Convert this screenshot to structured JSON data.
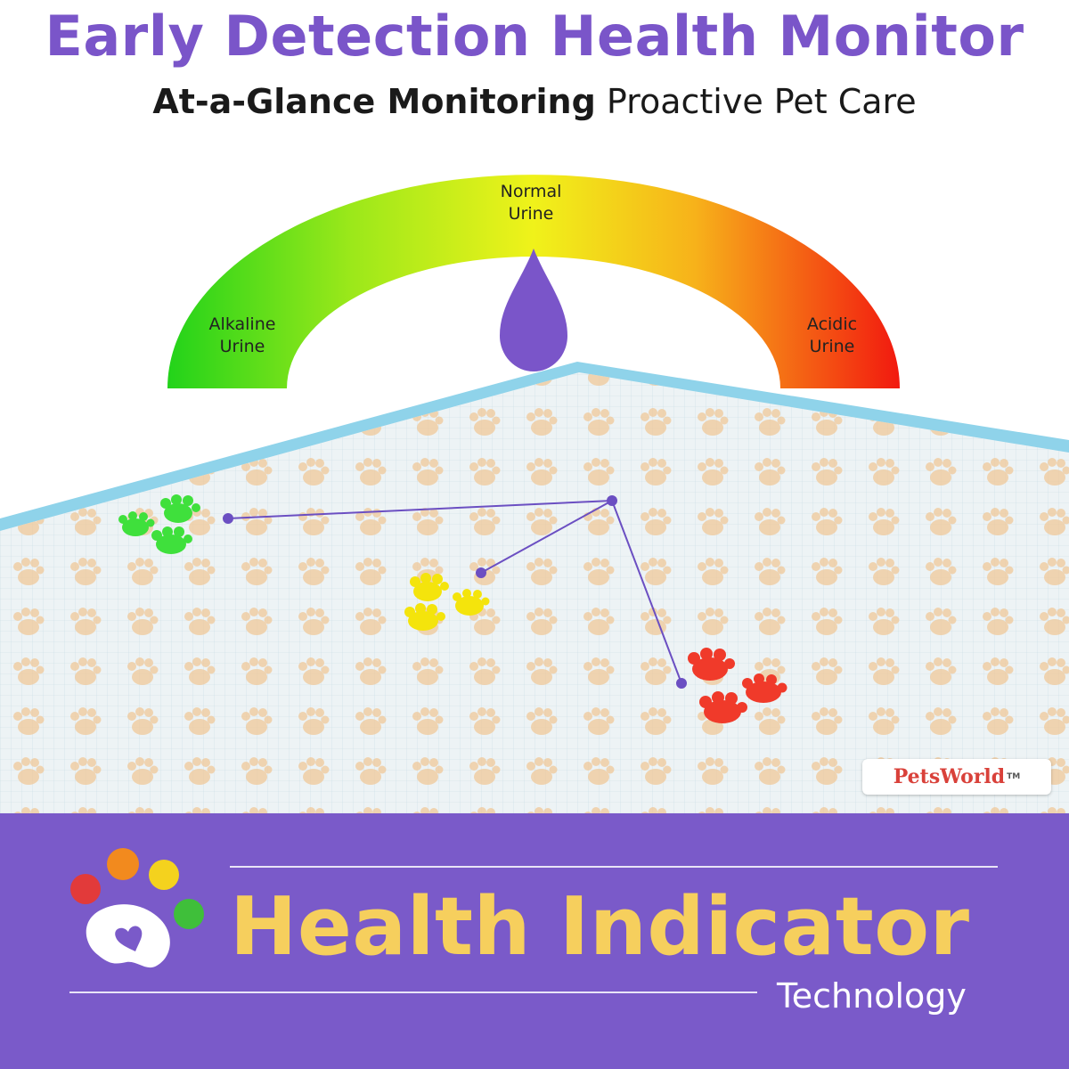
{
  "header": {
    "title": "Early Detection Health Monitor",
    "subtitle_bold": "At-a-Glance Monitoring",
    "subtitle_regular": "Proactive Pet Care"
  },
  "gauge": {
    "left_label": [
      "Alkaline",
      "Urine"
    ],
    "center_label": [
      "Normal",
      "Urine"
    ],
    "right_label": [
      "Acidic",
      "Urine"
    ],
    "colors": {
      "alkaline": "#22d31a",
      "normal": "#f0f21a",
      "acidic": "#f2190f",
      "drop": "#7a55c9"
    }
  },
  "mat": {
    "border_color": "#8fd3ea",
    "pattern_color": "#f0c89a",
    "paw_colors": {
      "green": "#3fe03c",
      "yellow": "#f4e40c",
      "red": "#f03a2a"
    }
  },
  "brand": {
    "name": "PetsWorld",
    "tm": "TM"
  },
  "banner": {
    "title": "Health Indicator",
    "subtitle": "Technology",
    "background": "#7a5ac9",
    "title_color": "#f6cf5d"
  },
  "logo": {
    "icon": "paw-heart-icon",
    "toe_colors": [
      "#e23a3a",
      "#f28a1e",
      "#f4d21e",
      "#3fbf3a"
    ]
  }
}
